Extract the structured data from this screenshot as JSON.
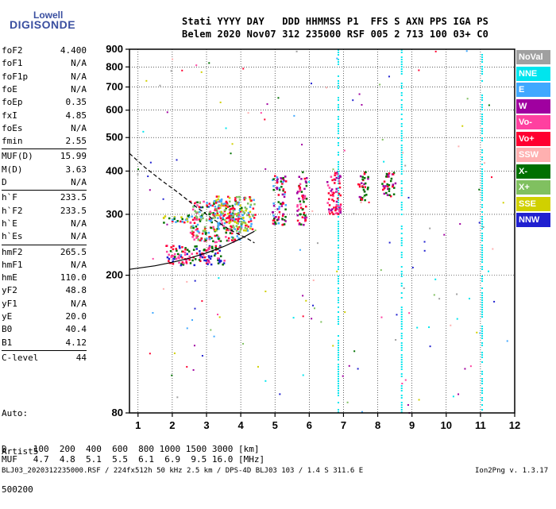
{
  "logo": {
    "line1": "Lowell",
    "line2": "DIGISONDE"
  },
  "header": {
    "line1": "Stati YYYY DAY   DDD HHMMSS P1  FFS S AXN PPS IGA PS",
    "line2": "Belem 2020 Nov07 312 235000 RSF 005 2 713 100 03+ C0"
  },
  "params": [
    {
      "label": "foF2",
      "value": "4.400"
    },
    {
      "label": "foF1",
      "value": "N/A"
    },
    {
      "label": "foF1p",
      "value": "N/A"
    },
    {
      "label": "foE",
      "value": "N/A"
    },
    {
      "label": "foEp",
      "value": "0.35"
    },
    {
      "label": "fxI",
      "value": "4.85"
    },
    {
      "label": "foEs",
      "value": "N/A"
    },
    {
      "label": "fmin",
      "value": "2.55"
    },
    {
      "label": "MUF(D)",
      "value": "15.99"
    },
    {
      "label": "M(D)",
      "value": "3.63"
    },
    {
      "label": "D",
      "value": "N/A"
    },
    {
      "label": "h`F",
      "value": "233.5"
    },
    {
      "label": "h`F2",
      "value": "233.5"
    },
    {
      "label": "h`E",
      "value": "N/A"
    },
    {
      "label": "h`Es",
      "value": "N/A"
    },
    {
      "label": "hmF2",
      "value": "265.5"
    },
    {
      "label": "hmF1",
      "value": "N/A"
    },
    {
      "label": "hmE",
      "value": "110.0"
    },
    {
      "label": "yF2",
      "value": "48.8"
    },
    {
      "label": "yF1",
      "value": "N/A"
    },
    {
      "label": "yE",
      "value": "20.0"
    },
    {
      "label": "B0",
      "value": "40.4"
    },
    {
      "label": "B1",
      "value": "4.12"
    },
    {
      "label": "C-level",
      "value": "44"
    }
  ],
  "auto_info": [
    "Auto:",
    "Artist5",
    "500200"
  ],
  "legend": [
    {
      "label": "NoVal",
      "color": "#a0a0a0"
    },
    {
      "label": "NNE",
      "color": "#00e5ee"
    },
    {
      "label": "E",
      "color": "#40a8ff"
    },
    {
      "label": "W",
      "color": "#a000a0"
    },
    {
      "label": "Vo-",
      "color": "#ff40a0"
    },
    {
      "label": "Vo+",
      "color": "#ff0030"
    },
    {
      "label": "SSW",
      "color": "#ffb0b0"
    },
    {
      "label": "X-",
      "color": "#007000"
    },
    {
      "label": "X+",
      "color": "#80c060"
    },
    {
      "label": "SSE",
      "color": "#d0d000"
    },
    {
      "label": "NNW",
      "color": "#2020d0"
    }
  ],
  "muf_table": {
    "row1": "D     100  200  400  600  800 1000 1500 3000 [km]",
    "row2": "MUF   4.7  4.8  5.1  5.5  6.1  6.9  9.5 16.0 [MHz]"
  },
  "footer": {
    "left": "BLJ03_2020312235000.RSF / 224fx512h 50 kHz 2.5 km / DPS-4D BLJ03 103 / 1.4 S 311.6 E",
    "right": "Ion2Png v. 1.3.17"
  },
  "chart_data": {
    "type": "scatter",
    "title": "",
    "xlabel": "",
    "ylabel": "",
    "xlim": [
      0.75,
      12
    ],
    "ylim": [
      80,
      900
    ],
    "x_ticks": [
      1,
      2,
      3,
      4,
      5,
      6,
      7,
      8,
      9,
      10,
      11,
      12
    ],
    "y_ticks": [
      80,
      200,
      300,
      400,
      500,
      600,
      700,
      800,
      900
    ],
    "y_scale": "logarithmic",
    "grid": true,
    "traces": [
      {
        "name": "",
        "style": "dashed",
        "color": "#000000",
        "x": [
          0.75,
          1.2,
          1.7,
          2.2,
          2.7,
          3.2,
          3.7,
          4.2,
          4.4
        ],
        "y": [
          450,
          410,
          375,
          345,
          315,
          290,
          270,
          255,
          248
        ]
      },
      {
        "name": "",
        "style": "solid",
        "color": "#000000",
        "x": [
          0.75,
          1.5,
          2.0,
          2.5,
          3.0,
          3.5,
          4.0,
          4.4
        ],
        "y": [
          208,
          213,
          218,
          224,
          232,
          242,
          255,
          268
        ]
      }
    ],
    "echo_clusters": [
      {
        "x_range": [
          1.7,
          2.6
        ],
        "y_range": [
          285,
          300
        ],
        "colors": [
          "#40a8ff",
          "#d0d000",
          "#007000",
          "#ff0030"
        ]
      },
      {
        "x_range": [
          1.8,
          3.5
        ],
        "y_range": [
          215,
          245
        ],
        "colors": [
          "#ff0030",
          "#ff40a0",
          "#007000",
          "#2020d0"
        ]
      },
      {
        "x_range": [
          2.5,
          4.0
        ],
        "y_range": [
          250,
          330
        ],
        "colors": [
          "#ff0030",
          "#ff40a0",
          "#40a8ff",
          "#007000",
          "#80c060"
        ]
      },
      {
        "x_range": [
          3.2,
          4.4
        ],
        "y_range": [
          270,
          340
        ],
        "colors": [
          "#ff0030",
          "#40a8ff",
          "#80c060",
          "#d0d000"
        ]
      },
      {
        "x_range": [
          4.9,
          5.3
        ],
        "y_range": [
          280,
          390
        ],
        "colors": [
          "#ff0030",
          "#40a8ff",
          "#007000",
          "#a000a0"
        ]
      },
      {
        "x_range": [
          5.6,
          5.9
        ],
        "y_range": [
          280,
          400
        ],
        "colors": [
          "#ff0030",
          "#ff40a0",
          "#a000a0",
          "#007000"
        ]
      },
      {
        "x_range": [
          6.5,
          6.9
        ],
        "y_range": [
          300,
          400
        ],
        "colors": [
          "#ff0030",
          "#a000a0",
          "#ff40a0"
        ]
      },
      {
        "x_range": [
          7.4,
          7.7
        ],
        "y_range": [
          330,
          400
        ],
        "colors": [
          "#ff0030",
          "#007000",
          "#a000a0"
        ]
      },
      {
        "x_range": [
          8.1,
          8.5
        ],
        "y_range": [
          340,
          400
        ],
        "colors": [
          "#ff0030",
          "#007000",
          "#a000a0"
        ]
      }
    ],
    "vertical_streaks": [
      {
        "x": 6.85,
        "y_range": [
          80,
          900
        ],
        "color": "#00e5ee"
      },
      {
        "x": 8.7,
        "y_range": [
          80,
          900
        ],
        "color": "#00e5ee"
      },
      {
        "x": 11.05,
        "y_range": [
          80,
          900
        ],
        "color": "#00e5ee"
      }
    ]
  }
}
